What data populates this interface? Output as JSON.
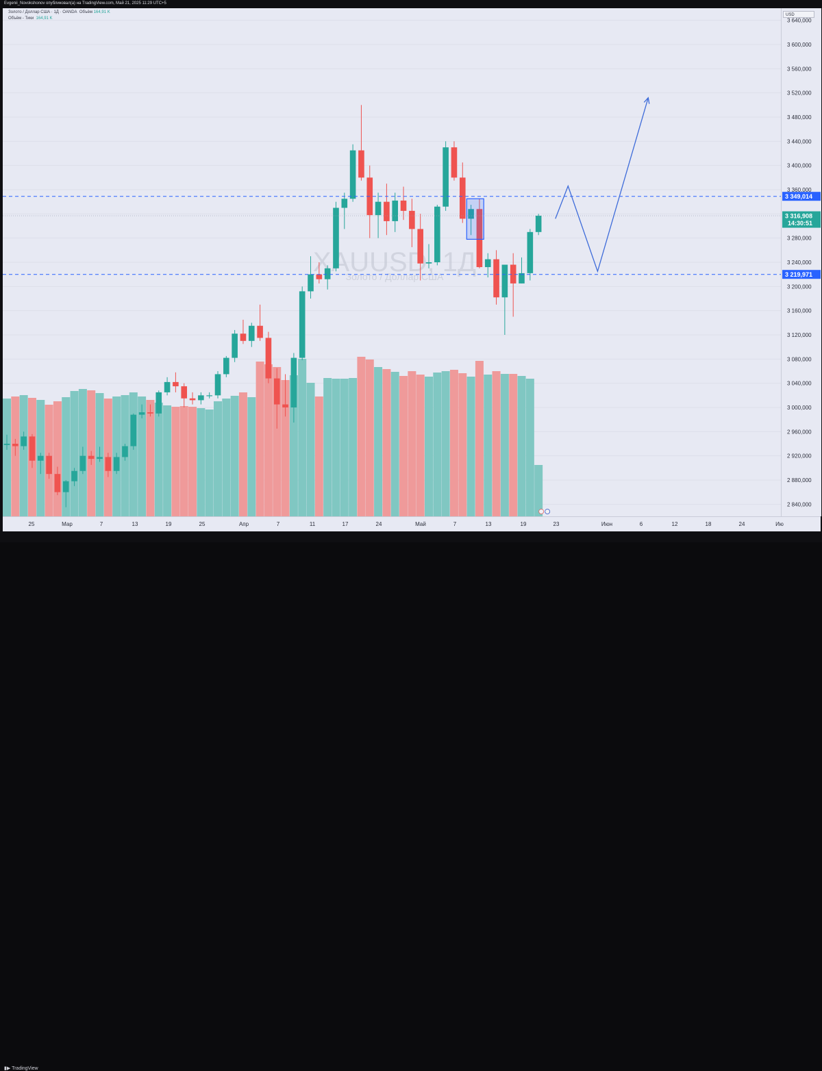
{
  "header": {
    "text": "Evgenii_Novokshonov опубликовал(а) на TradingView.com, Май 21, 2025 11:29 UTC+5"
  },
  "legend": {
    "line1_prefix": "Золото / Доллар США · 1Д · OANDA",
    "line1_vol_label": "Объём",
    "line1_vol_value": "164,91 K",
    "line2_label": "Объём - Тики",
    "line2_value": "164,91 K"
  },
  "watermark": {
    "symbol": "XAUUSD, 1Д",
    "name": "Золото / Доллар США"
  },
  "price_axis": {
    "currency": "USD"
  },
  "footer": {
    "brand": "TradingView"
  },
  "colors": {
    "up": "#26a69a",
    "down": "#ef5350",
    "vol_up": "#80c7c2",
    "vol_down": "#ef9a9a",
    "level": "#2962ff",
    "last_price": "#26a69a",
    "projection": "#3d6bd9"
  },
  "chart_data": {
    "type": "candlestick",
    "symbol": "XAUUSD",
    "timeframe": "1Д",
    "ylim": [
      2820,
      3660
    ],
    "y_ticks": [
      "3 640,000",
      "3 600,000",
      "3 560,000",
      "3 520,000",
      "3 480,000",
      "3 440,000",
      "3 400,000",
      "3 360,000",
      "3 320,000",
      "3 280,000",
      "3 240,000",
      "3 200,000",
      "3 160,000",
      "3 120,000",
      "3 080,000",
      "3 040,000",
      "3 000,000",
      "2 960,000",
      "2 920,000",
      "2 880,000",
      "2 840,000"
    ],
    "x_labels": [
      "25",
      "Мар",
      "7",
      "13",
      "19",
      "25",
      "Апр",
      "7",
      "11",
      "17",
      "24",
      "Май",
      "7",
      "13",
      "19",
      "23",
      "Июн",
      "6",
      "12",
      "18",
      "24",
      "Ию"
    ],
    "candles": [
      [
        2938,
        2955,
        2930,
        2940,
        172
      ],
      [
        2940,
        2948,
        2920,
        2936,
        175
      ],
      [
        2936,
        2960,
        2930,
        2952,
        177
      ],
      [
        2952,
        2956,
        2900,
        2912,
        173
      ],
      [
        2912,
        2925,
        2890,
        2920,
        170
      ],
      [
        2920,
        2925,
        2882,
        2890,
        163
      ],
      [
        2890,
        2902,
        2855,
        2860,
        168
      ],
      [
        2860,
        2880,
        2835,
        2878,
        174
      ],
      [
        2878,
        2900,
        2870,
        2895,
        183
      ],
      [
        2895,
        2935,
        2890,
        2920,
        186
      ],
      [
        2920,
        2928,
        2905,
        2915,
        184
      ],
      [
        2915,
        2935,
        2910,
        2918,
        180
      ],
      [
        2918,
        2925,
        2885,
        2895,
        172
      ],
      [
        2895,
        2925,
        2890,
        2918,
        175
      ],
      [
        2918,
        2940,
        2912,
        2936,
        177
      ],
      [
        2936,
        2990,
        2930,
        2988,
        181
      ],
      [
        2988,
        3005,
        2982,
        2992,
        175
      ],
      [
        2992,
        3005,
        2985,
        2990,
        170
      ],
      [
        2990,
        3028,
        2985,
        3025,
        166
      ],
      [
        3025,
        3050,
        3020,
        3042,
        162
      ],
      [
        3042,
        3058,
        3025,
        3035,
        160
      ],
      [
        3035,
        3040,
        3000,
        3015,
        161
      ],
      [
        3015,
        3025,
        3005,
        3012,
        160
      ],
      [
        3012,
        3025,
        3005,
        3020,
        158
      ],
      [
        3020,
        3025,
        3015,
        3020,
        156
      ],
      [
        3020,
        3060,
        3015,
        3055,
        168
      ],
      [
        3055,
        3085,
        3050,
        3082,
        172
      ],
      [
        3082,
        3128,
        3075,
        3122,
        176
      ],
      [
        3122,
        3145,
        3105,
        3110,
        181
      ],
      [
        3110,
        3140,
        3100,
        3135,
        174
      ],
      [
        3135,
        3170,
        3110,
        3115,
        226
      ],
      [
        3115,
        3125,
        3040,
        3048,
        222
      ],
      [
        3048,
        3065,
        2965,
        3005,
        218
      ],
      [
        3005,
        3055,
        2985,
        3000,
        199
      ],
      [
        3000,
        3090,
        2975,
        3082,
        206
      ],
      [
        3082,
        3200,
        3078,
        3192,
        230
      ],
      [
        3192,
        3250,
        3180,
        3220,
        195
      ],
      [
        3220,
        3240,
        3205,
        3212,
        175
      ],
      [
        3212,
        3235,
        3195,
        3230,
        202
      ],
      [
        3230,
        3340,
        3225,
        3330,
        201
      ],
      [
        3330,
        3355,
        3295,
        3345,
        201
      ],
      [
        3345,
        3435,
        3340,
        3425,
        202
      ],
      [
        3425,
        3500,
        3375,
        3380,
        233
      ],
      [
        3380,
        3400,
        3280,
        3318,
        229
      ],
      [
        3318,
        3355,
        3280,
        3340,
        218
      ],
      [
        3340,
        3370,
        3285,
        3308,
        215
      ],
      [
        3308,
        3355,
        3290,
        3342,
        211
      ],
      [
        3342,
        3365,
        3310,
        3325,
        205
      ],
      [
        3325,
        3345,
        3265,
        3295,
        212
      ],
      [
        3295,
        3320,
        3210,
        3238,
        207
      ],
      [
        3238,
        3270,
        3230,
        3240,
        204
      ],
      [
        3240,
        3335,
        3235,
        3332,
        210
      ],
      [
        3332,
        3440,
        3325,
        3430,
        212
      ],
      [
        3430,
        3440,
        3375,
        3380,
        214
      ],
      [
        3380,
        3405,
        3305,
        3312,
        209
      ],
      [
        3312,
        3335,
        3285,
        3328,
        204
      ],
      [
        3328,
        3345,
        3230,
        3232,
        227
      ],
      [
        3232,
        3255,
        3215,
        3245,
        207
      ],
      [
        3245,
        3260,
        3170,
        3182,
        212
      ],
      [
        3182,
        3235,
        3120,
        3236,
        208
      ],
      [
        3236,
        3255,
        3150,
        3205,
        208
      ],
      [
        3205,
        3248,
        3205,
        3222,
        205
      ],
      [
        3222,
        3295,
        3210,
        3290,
        201
      ],
      [
        3290,
        3320,
        3285,
        3317,
        75
      ]
    ],
    "levels": [
      {
        "value": 3349.014,
        "label": "3 349,014"
      },
      {
        "value": 3219.971,
        "label": "3 219,971"
      }
    ],
    "last_price": {
      "value": 3316.908,
      "label": "3 316,908",
      "countdown": "14:30:51"
    },
    "marked_box": {
      "from_candle": 55,
      "to_candle": 56,
      "top": 3345,
      "bottom": 3278
    },
    "projection_path": [
      {
        "candle": 65,
        "y": 3312
      },
      {
        "candle": 66.5,
        "y": 3366
      },
      {
        "candle": 70,
        "y": 3225
      },
      {
        "candle": 76,
        "y": 3512
      }
    ]
  }
}
